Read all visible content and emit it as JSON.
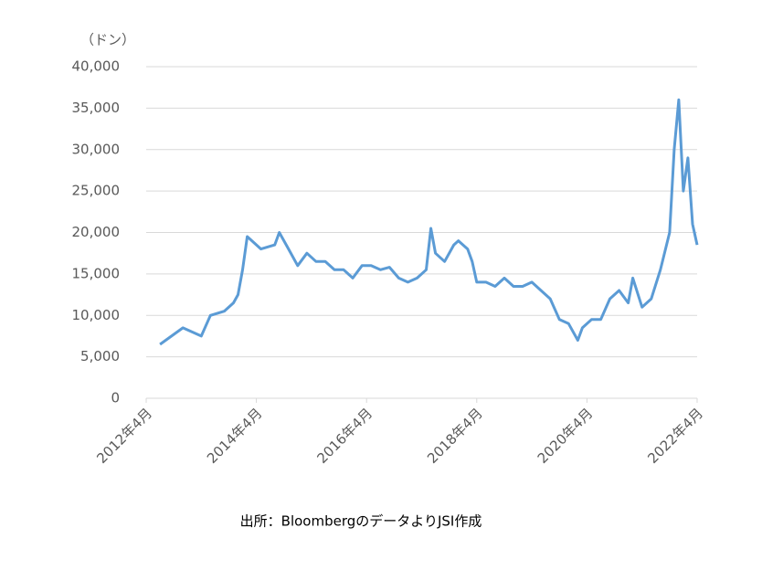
{
  "chart_data": {
    "type": "line",
    "unit_label": "（ドン）",
    "source": "出所：BloombergのデータよりJSI作成",
    "x": [
      "2012-07",
      "2012-12",
      "2013-04",
      "2013-06",
      "2013-09",
      "2013-11",
      "2013-12",
      "2014-01",
      "2014-02",
      "2014-05",
      "2014-08",
      "2014-09",
      "2014-11",
      "2015-01",
      "2015-03",
      "2015-05",
      "2015-07",
      "2015-09",
      "2015-11",
      "2016-01",
      "2016-03",
      "2016-05",
      "2016-07",
      "2016-09",
      "2016-11",
      "2017-01",
      "2017-03",
      "2017-05",
      "2017-06",
      "2017-07",
      "2017-09",
      "2017-11",
      "2017-12",
      "2018-02",
      "2018-03",
      "2018-04",
      "2018-06",
      "2018-08",
      "2018-10",
      "2018-12",
      "2019-02",
      "2019-04",
      "2019-06",
      "2019-08",
      "2019-10",
      "2019-12",
      "2020-02",
      "2020-03",
      "2020-05",
      "2020-07",
      "2020-09",
      "2020-11",
      "2021-01",
      "2021-02",
      "2021-04",
      "2021-06",
      "2021-08",
      "2021-10",
      "2021-11",
      "2021-12",
      "2022-01",
      "2022-02",
      "2022-03",
      "2022-04"
    ],
    "series": [
      {
        "color": "#5b9bd5",
        "values": [
          6500,
          8500,
          7500,
          10000,
          10500,
          11500,
          12500,
          15500,
          19500,
          18000,
          18500,
          20000,
          18000,
          16000,
          17500,
          16500,
          16500,
          15500,
          15500,
          14500,
          16000,
          16000,
          15500,
          15800,
          14500,
          14000,
          14500,
          15500,
          20500,
          17500,
          16500,
          18500,
          19000,
          18000,
          16500,
          14000,
          14000,
          13500,
          14500,
          13500,
          13500,
          14000,
          13000,
          12000,
          9500,
          9000,
          7000,
          8500,
          9500,
          9500,
          12000,
          13000,
          11500,
          14500,
          11000,
          12000,
          15500,
          20000,
          30000,
          36000,
          25000,
          29000,
          21000,
          18500
        ]
      }
    ],
    "xlim": [
      "2012-04",
      "2022-04"
    ],
    "xticks": [
      {
        "value": "2012-04",
        "label": "2012年4月"
      },
      {
        "value": "2014-04",
        "label": "2014年4月"
      },
      {
        "value": "2016-04",
        "label": "2016年4月"
      },
      {
        "value": "2018-04",
        "label": "2018年4月"
      },
      {
        "value": "2020-04",
        "label": "2020年4月"
      },
      {
        "value": "2022-04",
        "label": "2022年4月"
      }
    ],
    "ylim": [
      0,
      40000
    ],
    "yticks": [
      0,
      {
        "value": 5000,
        "label": "5,000"
      },
      {
        "value": 10000,
        "label": "10,000"
      },
      {
        "value": 15000,
        "label": "15,000"
      },
      {
        "value": 20000,
        "label": "20,000"
      },
      {
        "value": 25000,
        "label": "25,000"
      },
      {
        "value": 30000,
        "label": "30,000"
      },
      {
        "value": 35000,
        "label": "35,000"
      },
      {
        "value": 40000,
        "label": "40,000"
      }
    ],
    "grid": true
  }
}
